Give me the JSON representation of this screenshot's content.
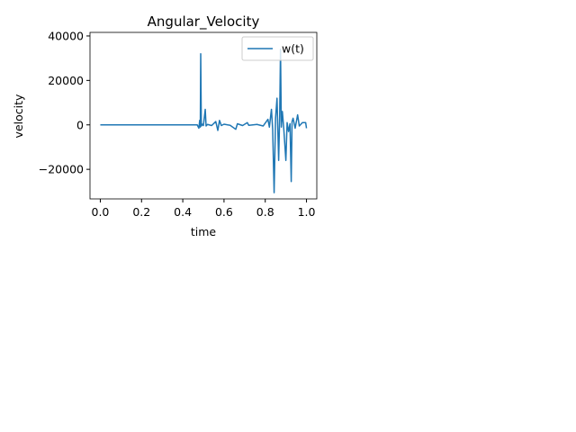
{
  "chart_data": {
    "type": "line",
    "title": "Angular_Velocity",
    "x_label": "time",
    "y_label": "velocity",
    "x": [
      0,
      0.47,
      0.478,
      0.482,
      0.485,
      0.487,
      0.49,
      0.495,
      0.5,
      0.509,
      0.513,
      0.52,
      0.54,
      0.56,
      0.57,
      0.578,
      0.587,
      0.6,
      0.63,
      0.657,
      0.665,
      0.69,
      0.713,
      0.72,
      0.76,
      0.79,
      0.813,
      0.82,
      0.83,
      0.836,
      0.843,
      0.85,
      0.857,
      0.861,
      0.865,
      0.87,
      0.874,
      0.878,
      0.883,
      0.89,
      0.9,
      0.906,
      0.913,
      0.92,
      0.926,
      0.93,
      0.935,
      0.945,
      0.957,
      0.965,
      0.98,
      0.996,
      1.0
    ],
    "series": [
      {
        "name": "w(t)",
        "color": "#1f77b4",
        "values": [
          0,
          0,
          -1500,
          2000,
          -1000,
          32000,
          -500,
          300,
          -300,
          7000,
          -500,
          200,
          -300,
          1500,
          -2500,
          2000,
          -300,
          300,
          -200,
          -2000,
          500,
          -300,
          1000,
          -200,
          200,
          -500,
          2500,
          -1000,
          7000,
          -2000,
          -30500,
          3000,
          12000,
          -2000,
          -16000,
          4000,
          34000,
          -1000,
          6000,
          -2000,
          -16000,
          1000,
          -3000,
          500,
          -25500,
          1500,
          3000,
          -1500,
          4500,
          -500,
          1000,
          1000,
          -1500
        ]
      }
    ],
    "xlim": [
      -0.05,
      1.05
    ],
    "ylim": [
      -33300,
      41600
    ],
    "xticks": [
      {
        "value": 0,
        "label": "0.0"
      },
      {
        "value": 0.2,
        "label": "0.2"
      },
      {
        "value": 0.4,
        "label": "0.4"
      },
      {
        "value": 0.6,
        "label": "0.6"
      },
      {
        "value": 0.8,
        "label": "0.8"
      },
      {
        "value": 1,
        "label": "1.0"
      }
    ],
    "yticks": [
      {
        "value": -20000,
        "label": "−20000"
      },
      0,
      20000,
      40000
    ],
    "legend": "upper right",
    "grid": false
  }
}
